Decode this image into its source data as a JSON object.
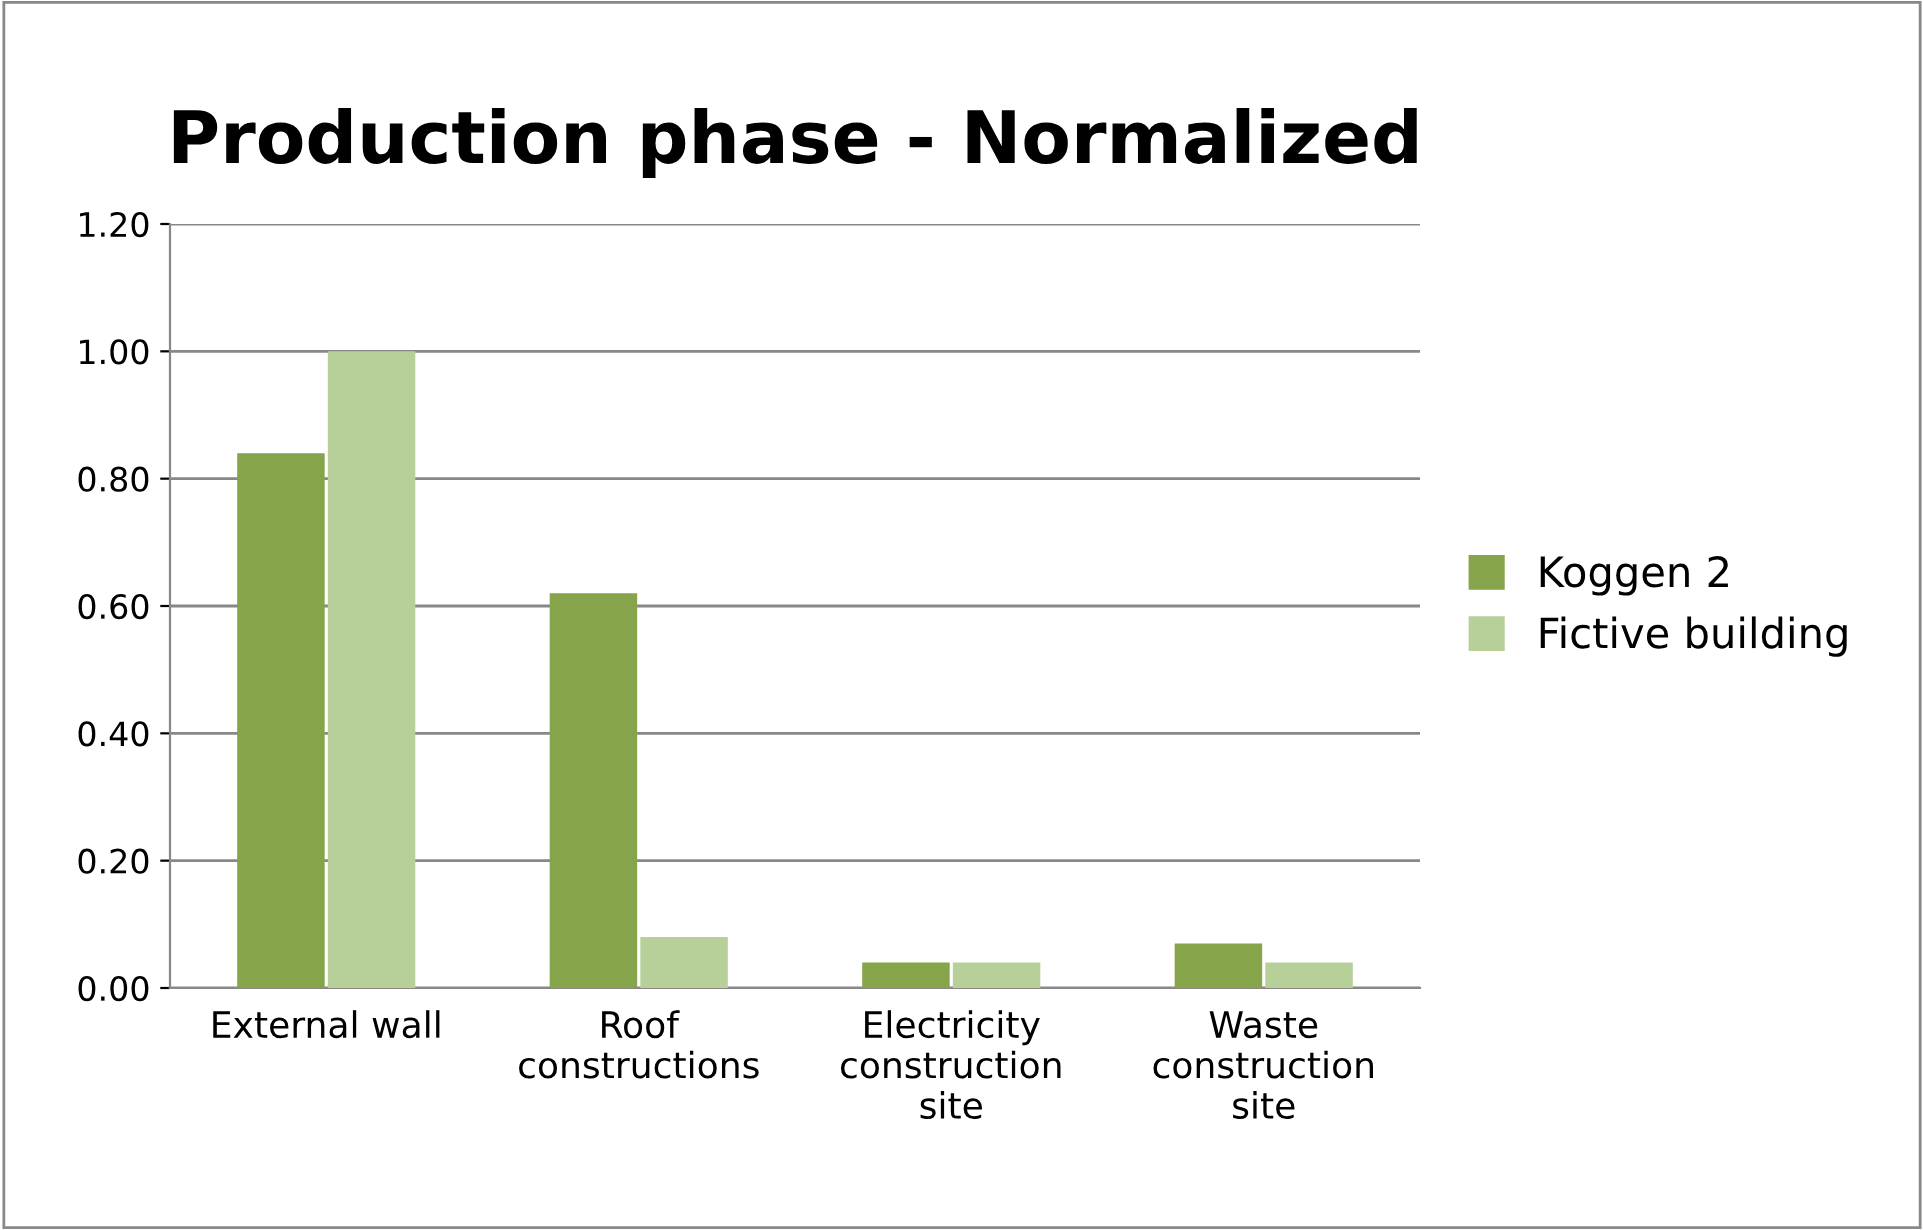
{
  "chart_data": {
    "type": "bar",
    "title": "Production phase - Normalized",
    "categories": [
      "External wall",
      "Roof\nconstructions",
      "Electricity\nconstruction\nsite",
      "Waste\nconstruction\nsite"
    ],
    "series": [
      {
        "name": "Koggen 2",
        "color": "#86a44a",
        "values": [
          0.84,
          0.62,
          0.04,
          0.07
        ]
      },
      {
        "name": "Fictive building",
        "color": "#b7d09a",
        "values": [
          1.0,
          0.08,
          0.04,
          0.04
        ]
      }
    ],
    "ylim": [
      0,
      1.2
    ],
    "yticks": [
      {
        "value": 0,
        "label": "0.00"
      },
      {
        "value": 0.2,
        "label": "0.20"
      },
      {
        "value": 0.4,
        "label": "0.40"
      },
      {
        "value": 0.6,
        "label": "0.60"
      },
      {
        "value": 0.8,
        "label": "0.80"
      },
      {
        "value": 1.0,
        "label": "1.00"
      },
      {
        "value": 1.2,
        "label": "1.20"
      }
    ],
    "grid": "y",
    "legend": "right"
  }
}
